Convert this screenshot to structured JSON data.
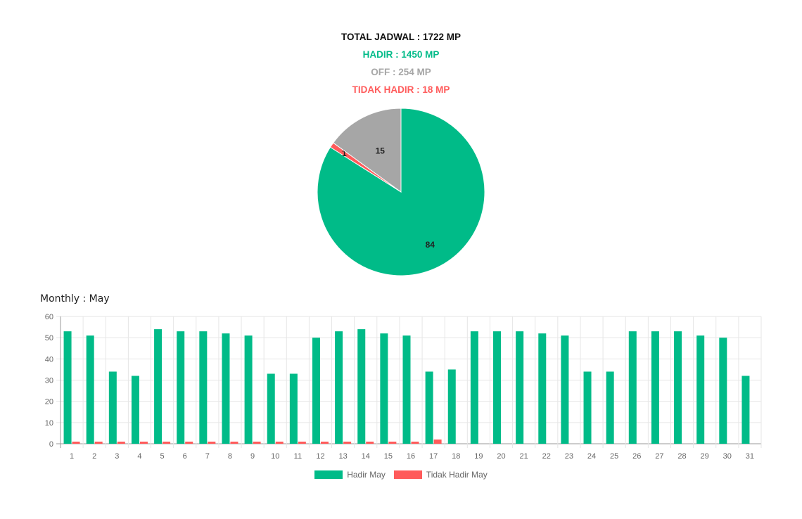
{
  "summary": {
    "total": "TOTAL JADWAL : 1722 MP",
    "hadir": "HADIR : 1450 MP",
    "off": "OFF : 254 MP",
    "tidak_hadir": "TIDAK HADIR : 18 MP"
  },
  "colors": {
    "hadir": "#00bb88",
    "off": "#a6a6a6",
    "tidak_hadir": "#ff5b5b"
  },
  "chart_data": [
    {
      "type": "pie",
      "labels": [
        "Hadir",
        "Tidak Hadir",
        "Off"
      ],
      "values": [
        84,
        1,
        15
      ],
      "colors": [
        "#00bb88",
        "#ff5b5b",
        "#a6a6a6"
      ]
    },
    {
      "type": "bar",
      "title": "Monthly : May",
      "categories": [
        "1",
        "2",
        "3",
        "4",
        "5",
        "6",
        "7",
        "8",
        "9",
        "10",
        "11",
        "12",
        "13",
        "14",
        "15",
        "16",
        "17",
        "18",
        "19",
        "20",
        "21",
        "22",
        "23",
        "24",
        "25",
        "26",
        "27",
        "28",
        "29",
        "30",
        "31"
      ],
      "series": [
        {
          "name": "Hadir May",
          "color": "#00bb88",
          "values": [
            53,
            51,
            34,
            32,
            54,
            53,
            53,
            52,
            51,
            33,
            33,
            50,
            53,
            54,
            52,
            51,
            34,
            35,
            53,
            53,
            53,
            52,
            51,
            34,
            34,
            53,
            53,
            53,
            51,
            50,
            32
          ]
        },
        {
          "name": "Tidak Hadir May",
          "color": "#ff5b5b",
          "values": [
            1,
            1,
            1,
            1,
            1,
            1,
            1,
            1,
            1,
            1,
            1,
            1,
            1,
            1,
            1,
            1,
            2,
            0,
            0,
            0,
            0,
            0,
            0,
            0,
            0,
            0,
            0,
            0,
            0,
            0,
            0
          ]
        }
      ],
      "ylim": [
        0,
        60
      ],
      "yticks": [
        0,
        10,
        20,
        30,
        40,
        50,
        60
      ],
      "grid": true,
      "legend": "bottom"
    }
  ]
}
